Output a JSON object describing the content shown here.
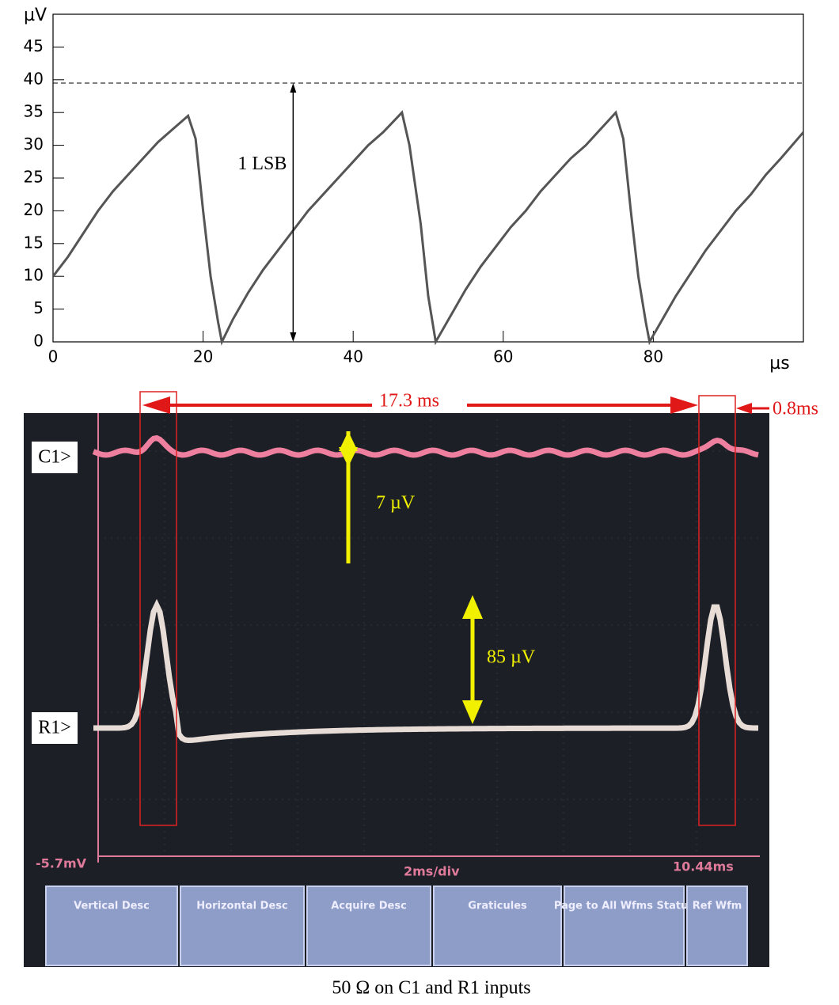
{
  "chart_data": {
    "type": "line",
    "y_label": "µV",
    "x_label": "µs",
    "xlim": [
      0,
      100
    ],
    "ylim": [
      0,
      50
    ],
    "xticks": [
      0,
      20,
      40,
      60,
      80
    ],
    "yticks": [
      0,
      5,
      10,
      15,
      20,
      25,
      30,
      35,
      40,
      45
    ],
    "x": [
      0,
      2,
      4,
      6,
      8,
      10,
      12,
      14,
      16,
      18,
      19,
      20,
      21,
      22,
      22.5,
      24,
      26,
      28,
      30,
      32,
      34,
      36,
      38,
      40,
      42,
      44,
      46.5,
      47.5,
      49,
      50,
      51,
      53,
      55,
      57,
      59,
      61,
      63,
      65,
      67,
      69,
      71,
      73,
      75,
      76,
      77,
      78,
      79,
      79.5,
      81,
      83,
      85,
      87,
      89,
      91,
      93,
      95,
      97,
      100
    ],
    "series": [
      {
        "color": "#555555",
        "values": [
          10,
          13,
          16.5,
          20,
          23,
          25.5,
          28,
          30.5,
          32.5,
          34.5,
          31,
          20,
          10,
          3,
          0,
          3.5,
          7.5,
          11,
          14,
          17,
          20,
          22.5,
          25,
          27.5,
          30,
          32,
          35,
          30,
          18,
          7,
          0,
          4,
          8,
          11.5,
          14.5,
          17.5,
          20,
          23,
          25.5,
          28,
          30,
          32.5,
          35,
          31,
          20,
          10,
          3,
          0,
          3,
          7,
          10.5,
          14,
          17,
          20,
          22.5,
          25.5,
          28,
          32
        ]
      }
    ],
    "annotation": {
      "text": "1 LSB",
      "x": 32,
      "level": 39.5
    }
  },
  "photo": {
    "period": "17.3 ms",
    "width": "0.8ms",
    "c1_amplitude": "7 µV",
    "r1_amplitude": "85 µV",
    "c1_marker": "C1>",
    "r1_marker": "R1>",
    "menu": [
      "Vertical Desc",
      "Horizontal Desc",
      "Acquire Desc",
      "Graticules",
      "Page to All Wfms Status",
      "Ref Wfm"
    ],
    "status": [
      "-5.7mV",
      "2ms/div",
      "10.44ms"
    ]
  },
  "caption": "50 Ω on C1 and R1 inputs"
}
